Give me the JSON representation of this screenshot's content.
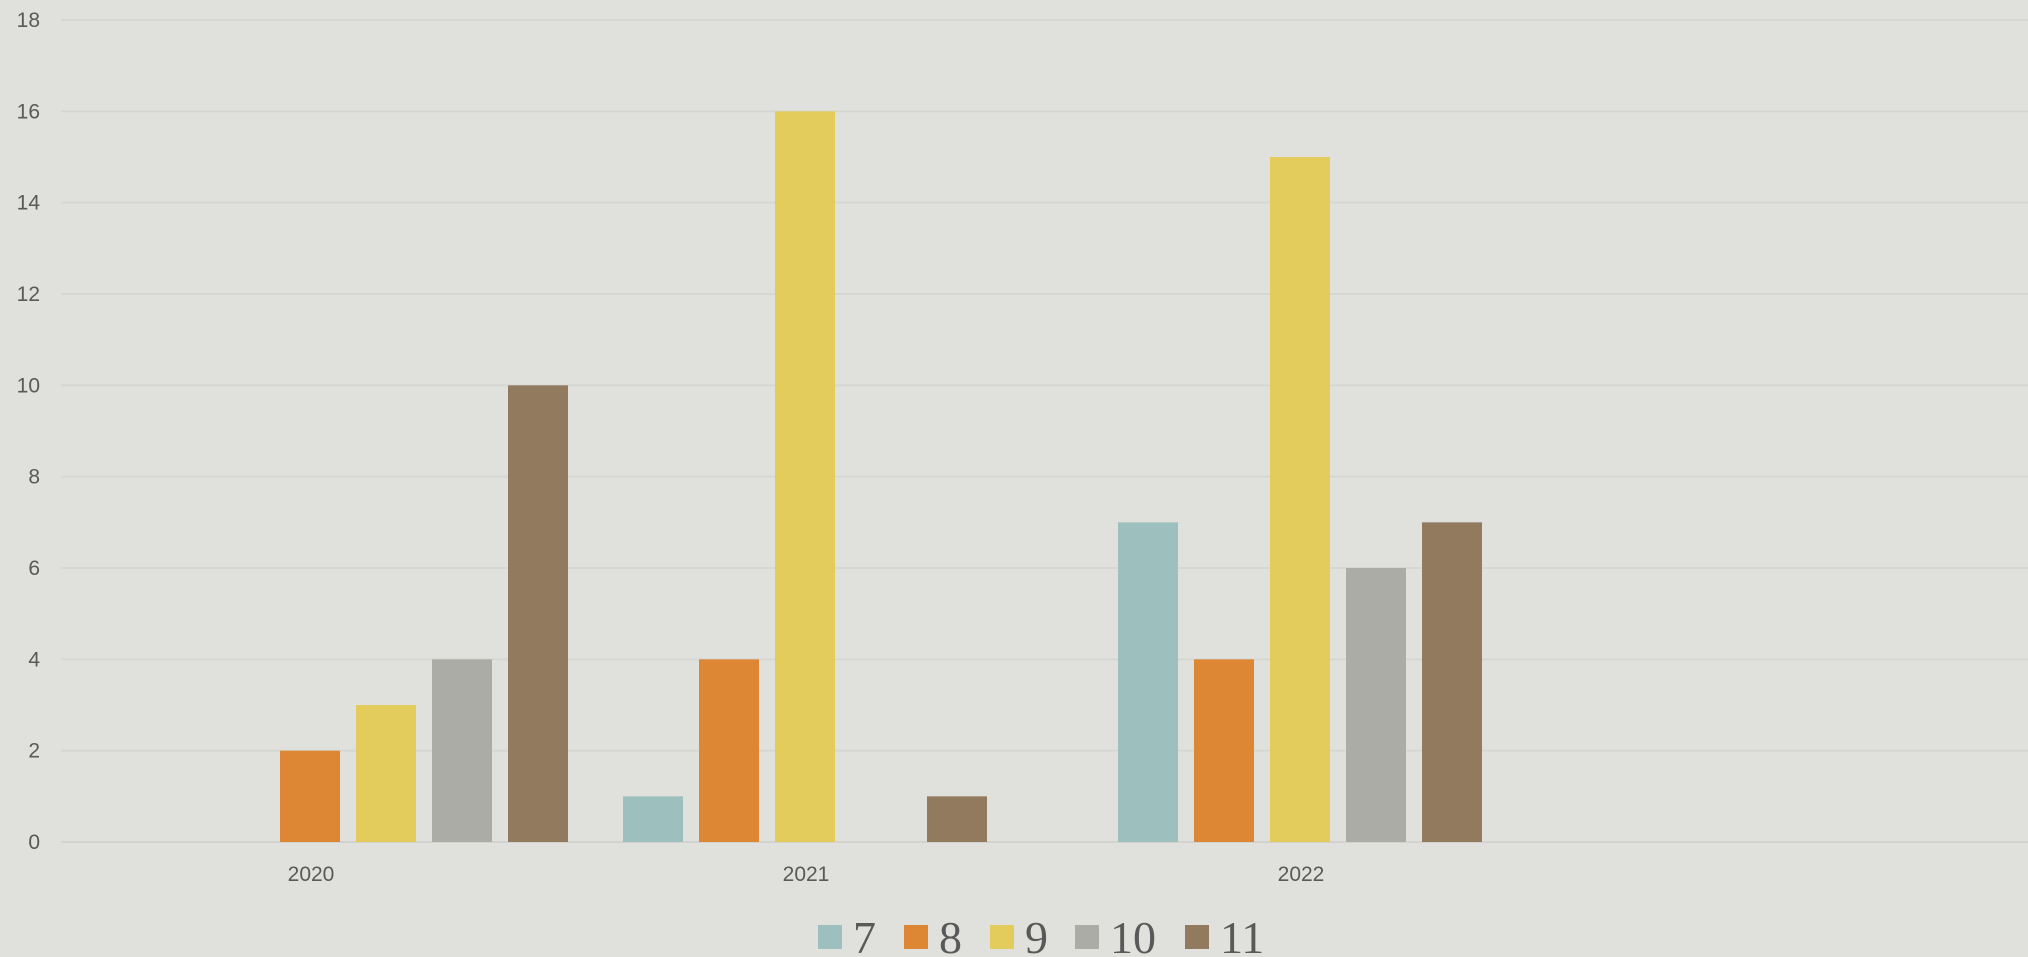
{
  "chart_data": {
    "type": "bar",
    "categories": [
      "2020",
      "2021",
      "2022"
    ],
    "series": [
      {
        "name": "7",
        "color": "#9dbfbd",
        "values": [
          0,
          1,
          7
        ]
      },
      {
        "name": "8",
        "color": "#dd8633",
        "values": [
          2,
          4,
          4
        ]
      },
      {
        "name": "9",
        "color": "#e3cc5b",
        "values": [
          3,
          16,
          15
        ]
      },
      {
        "name": "10",
        "color": "#acaca6",
        "values": [
          4,
          0,
          6
        ]
      },
      {
        "name": "11",
        "color": "#927a5f",
        "values": [
          10,
          1,
          7
        ]
      }
    ],
    "ylim": [
      0,
      18
    ],
    "yticks": [
      "0",
      "2",
      "4",
      "6",
      "8",
      "10",
      "12",
      "14",
      "16",
      "18"
    ],
    "title": "",
    "xlabel": "",
    "ylabel": "",
    "grid": true,
    "legend_position": "bottom"
  }
}
